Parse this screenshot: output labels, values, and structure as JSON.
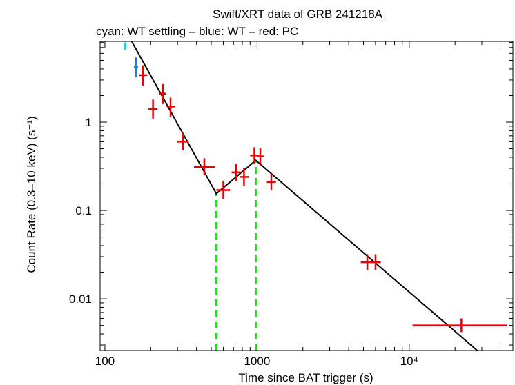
{
  "chart_data": {
    "type": "scatter",
    "title": "Swift/XRT data of GRB 241218A",
    "subtitle": "cyan: WT settling – blue: WT – red: PC",
    "xlabel": "Time since BAT trigger (s)",
    "ylabel": "Count Rate (0.3–10 keV) (s⁻¹)",
    "xscale": "log",
    "yscale": "log",
    "xlim": [
      93,
      48000
    ],
    "ylim": [
      0.0026,
      8.2
    ],
    "x_ticks": [
      {
        "value": 100,
        "label": "100"
      },
      {
        "value": 1000,
        "label": "1000"
      },
      {
        "value": 10000,
        "label": "10⁴"
      }
    ],
    "y_ticks": [
      {
        "value": 0.01,
        "label": "0.01"
      },
      {
        "value": 0.1,
        "label": "0.1"
      },
      {
        "value": 1,
        "label": "1"
      }
    ],
    "colors": {
      "wt_settling": "#00d8e0",
      "wt": "#1a7fe0",
      "pc": "#ee0000",
      "model": "#000000",
      "break": "#22dd22"
    },
    "series": [
      {
        "name": "WT settling",
        "color_key": "wt_settling",
        "points": [
          {
            "x": 136,
            "xlo": 134,
            "xhi": 138,
            "y": 7.3,
            "ylo": 6.6,
            "yhi": 8.0
          }
        ]
      },
      {
        "name": "WT",
        "color_key": "wt",
        "points": [
          {
            "x": 160,
            "xlo": 155,
            "xhi": 165,
            "y": 4.2,
            "ylo": 3.2,
            "yhi": 5.4
          }
        ]
      },
      {
        "name": "PC",
        "color_key": "pc",
        "points": [
          {
            "x": 178,
            "xlo": 168,
            "xhi": 190,
            "y": 3.4,
            "ylo": 2.6,
            "yhi": 4.4
          },
          {
            "x": 207,
            "xlo": 193,
            "xhi": 222,
            "y": 1.4,
            "ylo": 1.1,
            "yhi": 1.8
          },
          {
            "x": 240,
            "xlo": 228,
            "xhi": 252,
            "y": 2.1,
            "ylo": 1.6,
            "yhi": 2.7
          },
          {
            "x": 270,
            "xlo": 255,
            "xhi": 287,
            "y": 1.5,
            "ylo": 1.15,
            "yhi": 1.9
          },
          {
            "x": 325,
            "xlo": 298,
            "xhi": 355,
            "y": 0.6,
            "ylo": 0.48,
            "yhi": 0.76
          },
          {
            "x": 450,
            "xlo": 385,
            "xhi": 530,
            "y": 0.31,
            "ylo": 0.25,
            "yhi": 0.39
          },
          {
            "x": 600,
            "xlo": 540,
            "xhi": 665,
            "y": 0.17,
            "ylo": 0.135,
            "yhi": 0.215
          },
          {
            "x": 730,
            "xlo": 680,
            "xhi": 780,
            "y": 0.27,
            "ylo": 0.215,
            "yhi": 0.34
          },
          {
            "x": 820,
            "xlo": 770,
            "xhi": 880,
            "y": 0.24,
            "ylo": 0.19,
            "yhi": 0.3
          },
          {
            "x": 960,
            "xlo": 900,
            "xhi": 1020,
            "y": 0.42,
            "ylo": 0.34,
            "yhi": 0.52
          },
          {
            "x": 1050,
            "xlo": 1000,
            "xhi": 1110,
            "y": 0.41,
            "ylo": 0.33,
            "yhi": 0.51
          },
          {
            "x": 1240,
            "xlo": 1160,
            "xhi": 1330,
            "y": 0.21,
            "ylo": 0.17,
            "yhi": 0.26
          },
          {
            "x": 5300,
            "xlo": 4800,
            "xhi": 5800,
            "y": 0.026,
            "ylo": 0.021,
            "yhi": 0.032
          },
          {
            "x": 6000,
            "xlo": 5500,
            "xhi": 6500,
            "y": 0.026,
            "ylo": 0.021,
            "yhi": 0.032
          },
          {
            "x": 22000,
            "xlo": 10500,
            "xhi": 44000,
            "y": 0.005,
            "ylo": 0.0042,
            "yhi": 0.006
          }
        ]
      }
    ],
    "model_line": [
      {
        "x": 150,
        "y": 8.2
      },
      {
        "x": 540,
        "y": 0.155
      },
      {
        "x": 980,
        "y": 0.37
      },
      {
        "x": 28000,
        "y": 0.0026
      }
    ],
    "breaks": [
      540,
      980
    ]
  }
}
